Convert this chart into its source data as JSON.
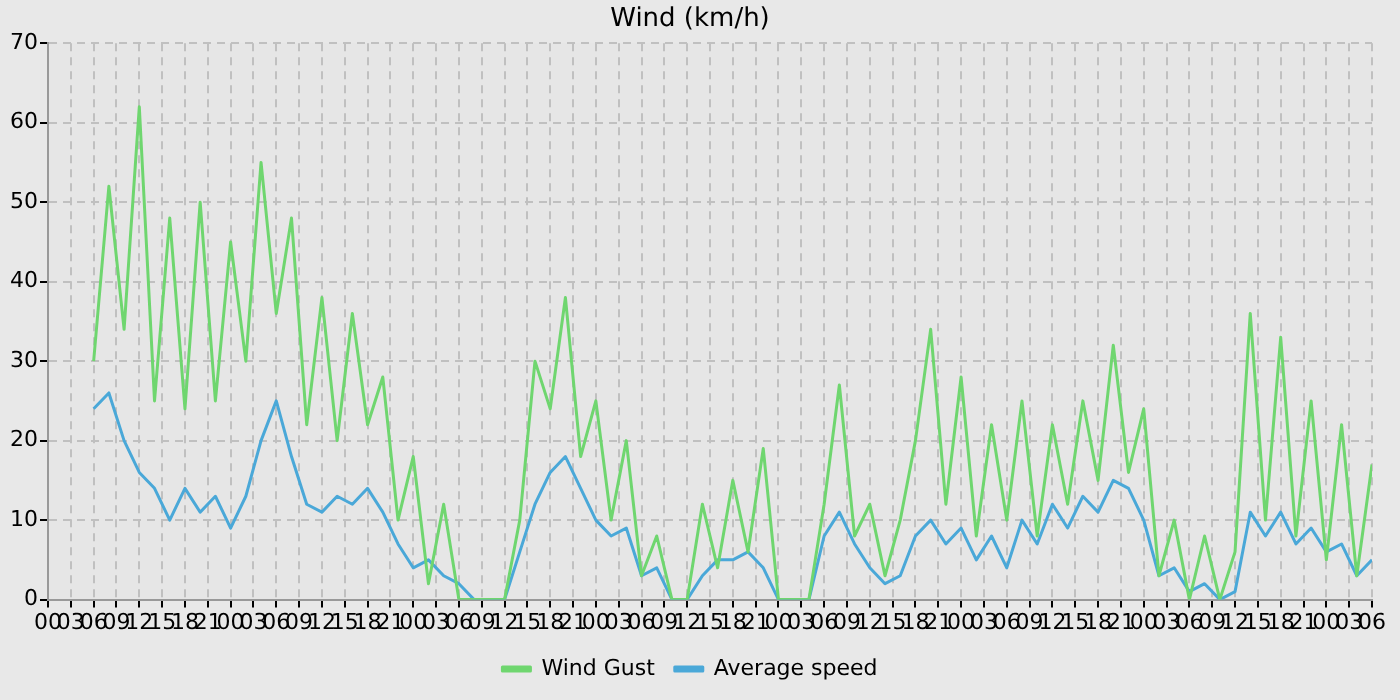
{
  "chart_data": {
    "type": "line",
    "title": "Wind (km/h)",
    "x": [
      6,
      8,
      10,
      12,
      14,
      16,
      18,
      20,
      22,
      24,
      26,
      28,
      30,
      32,
      34,
      36,
      38,
      40,
      42,
      44,
      46,
      48,
      50,
      52,
      54,
      56,
      58,
      60,
      62,
      64,
      66,
      68,
      70,
      72,
      74,
      76,
      78,
      80,
      82,
      84,
      86,
      88,
      90,
      92,
      94,
      96,
      98,
      100,
      102,
      104,
      106,
      108,
      110,
      112,
      114,
      116,
      118,
      120,
      122,
      124,
      126,
      128,
      130,
      132,
      134,
      136,
      138,
      140,
      142,
      144,
      146,
      148,
      150,
      152,
      154,
      156,
      158,
      160,
      162,
      164,
      166,
      168,
      170,
      172,
      174
    ],
    "series": [
      {
        "name": "Wind Gust",
        "color": "#6fd66f",
        "values": [
          30,
          52,
          34,
          62,
          25,
          48,
          24,
          50,
          25,
          45,
          30,
          55,
          36,
          48,
          22,
          38,
          20,
          36,
          22,
          28,
          10,
          18,
          2,
          12,
          0,
          0,
          0,
          0,
          10,
          30,
          24,
          38,
          18,
          25,
          10,
          20,
          3,
          8,
          0,
          0,
          12,
          4,
          15,
          6,
          19,
          0,
          0,
          0,
          12,
          27,
          8,
          12,
          3,
          10,
          20,
          34,
          12,
          28,
          8,
          22,
          10,
          25,
          8,
          22,
          12,
          25,
          15,
          32,
          16,
          24,
          3,
          10,
          0,
          8,
          0,
          6,
          36,
          10,
          33,
          8,
          25,
          5,
          22,
          3,
          17
        ]
      },
      {
        "name": "Average speed",
        "color": "#4aa8d8",
        "values": [
          24,
          26,
          20,
          16,
          14,
          10,
          14,
          11,
          13,
          9,
          13,
          20,
          25,
          18,
          12,
          11,
          13,
          12,
          14,
          11,
          7,
          4,
          5,
          3,
          2,
          0,
          0,
          0,
          6,
          12,
          16,
          18,
          14,
          10,
          8,
          9,
          3,
          4,
          0,
          0,
          3,
          5,
          5,
          6,
          4,
          0,
          0,
          0,
          8,
          11,
          7,
          4,
          2,
          3,
          8,
          10,
          7,
          9,
          5,
          8,
          4,
          10,
          7,
          12,
          9,
          13,
          11,
          15,
          14,
          10,
          3,
          4,
          1,
          2,
          0,
          1,
          11,
          8,
          11,
          7,
          9,
          6,
          7,
          3,
          5
        ]
      }
    ],
    "xlim": [
      0,
      174
    ],
    "xticks": [
      {
        "value": 0,
        "label": "00"
      },
      {
        "value": 3,
        "label": "03"
      },
      {
        "value": 6,
        "label": "06"
      },
      {
        "value": 9,
        "label": "09"
      },
      {
        "value": 12,
        "label": "12"
      },
      {
        "value": 15,
        "label": "15"
      },
      {
        "value": 18,
        "label": "18"
      },
      {
        "value": 21,
        "label": "21"
      },
      {
        "value": 24,
        "label": "00"
      },
      {
        "value": 27,
        "label": "03"
      },
      {
        "value": 30,
        "label": "06"
      },
      {
        "value": 33,
        "label": "09"
      },
      {
        "value": 36,
        "label": "12"
      },
      {
        "value": 39,
        "label": "15"
      },
      {
        "value": 42,
        "label": "18"
      },
      {
        "value": 45,
        "label": "21"
      },
      {
        "value": 48,
        "label": "00"
      },
      {
        "value": 51,
        "label": "03"
      },
      {
        "value": 54,
        "label": "06"
      },
      {
        "value": 57,
        "label": "09"
      },
      {
        "value": 60,
        "label": "12"
      },
      {
        "value": 63,
        "label": "15"
      },
      {
        "value": 66,
        "label": "18"
      },
      {
        "value": 69,
        "label": "21"
      },
      {
        "value": 72,
        "label": "00"
      },
      {
        "value": 75,
        "label": "03"
      },
      {
        "value": 78,
        "label": "06"
      },
      {
        "value": 81,
        "label": "09"
      },
      {
        "value": 84,
        "label": "12"
      },
      {
        "value": 87,
        "label": "15"
      },
      {
        "value": 90,
        "label": "18"
      },
      {
        "value": 93,
        "label": "21"
      },
      {
        "value": 96,
        "label": "00"
      },
      {
        "value": 99,
        "label": "03"
      },
      {
        "value": 102,
        "label": "06"
      },
      {
        "value": 105,
        "label": "09"
      },
      {
        "value": 108,
        "label": "12"
      },
      {
        "value": 111,
        "label": "15"
      },
      {
        "value": 114,
        "label": "18"
      },
      {
        "value": 117,
        "label": "21"
      },
      {
        "value": 120,
        "label": "00"
      },
      {
        "value": 123,
        "label": "03"
      },
      {
        "value": 126,
        "label": "06"
      },
      {
        "value": 129,
        "label": "09"
      },
      {
        "value": 132,
        "label": "12"
      },
      {
        "value": 135,
        "label": "15"
      },
      {
        "value": 138,
        "label": "18"
      },
      {
        "value": 141,
        "label": "21"
      },
      {
        "value": 144,
        "label": "00"
      },
      {
        "value": 147,
        "label": "03"
      },
      {
        "value": 150,
        "label": "06"
      },
      {
        "value": 153,
        "label": "09"
      },
      {
        "value": 156,
        "label": "12"
      },
      {
        "value": 159,
        "label": "15"
      },
      {
        "value": 162,
        "label": "18"
      },
      {
        "value": 165,
        "label": "21"
      },
      {
        "value": 168,
        "label": "00"
      },
      {
        "value": 171,
        "label": "03"
      },
      {
        "value": 174,
        "label": "06"
      }
    ],
    "ylim": [
      0,
      70
    ],
    "yticks": [
      0,
      10,
      20,
      30,
      40,
      50,
      60,
      70
    ],
    "grid": true,
    "legend": "bottom"
  }
}
